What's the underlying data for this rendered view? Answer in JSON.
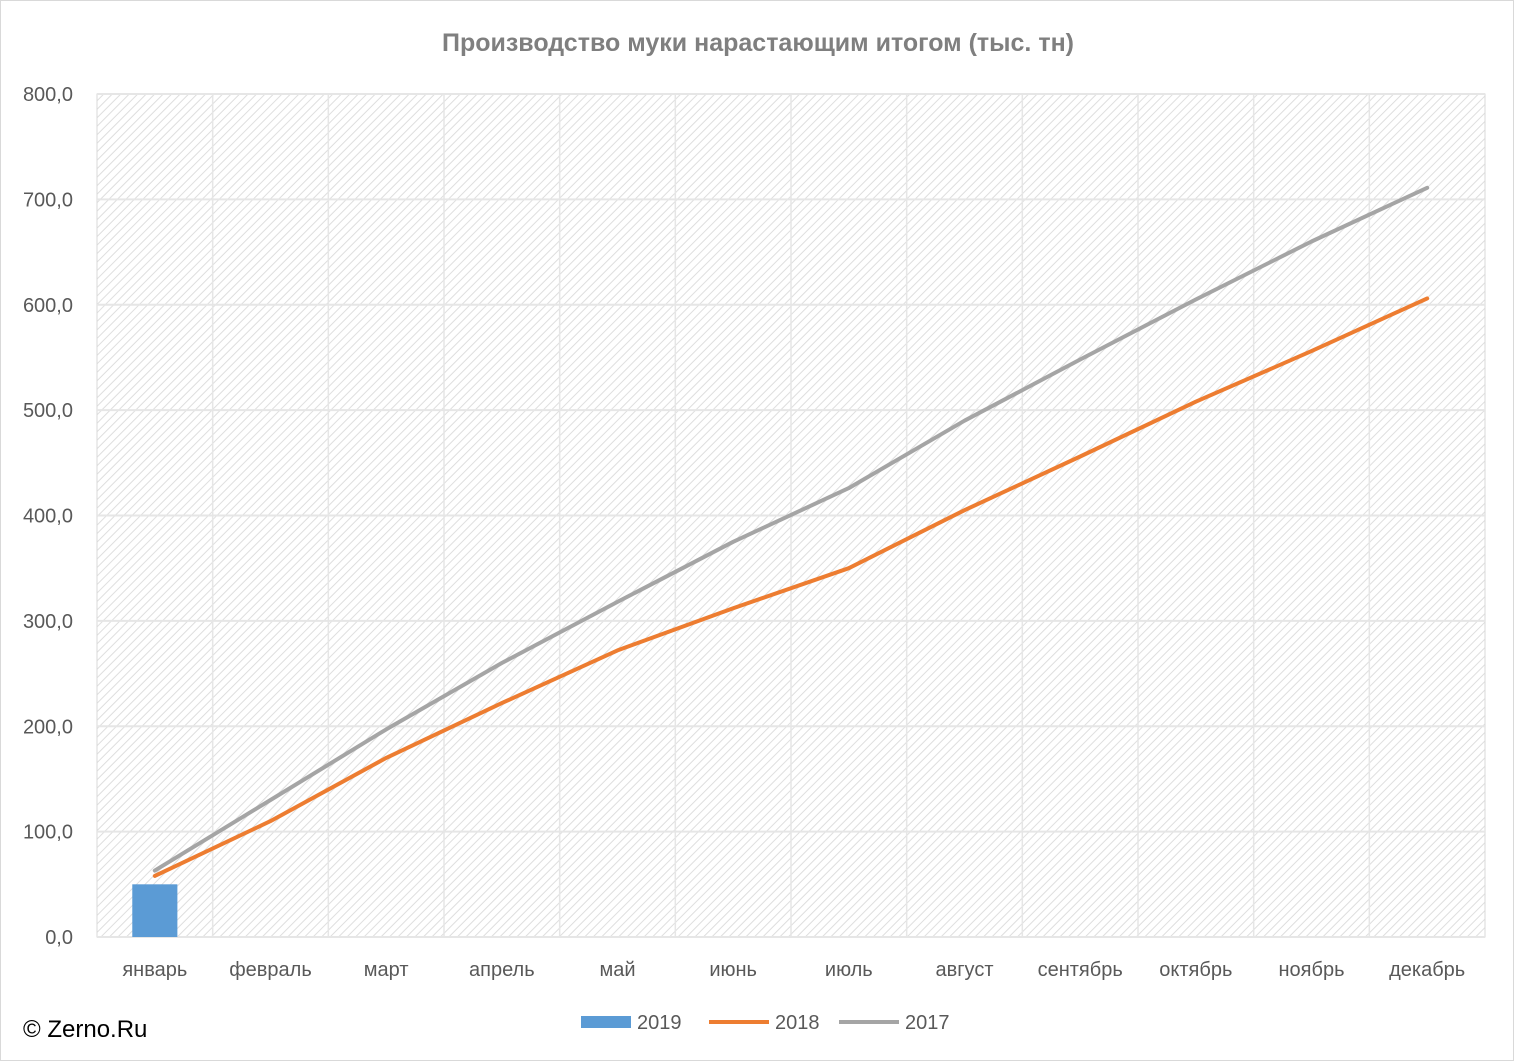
{
  "chart_data": {
    "type": "bar",
    "title": "Производство муки нарастающим итогом (тыс. тн)",
    "categories": [
      "январь",
      "февраль",
      "март",
      "апрель",
      "май",
      "июнь",
      "июль",
      "август",
      "сентябрь",
      "октябрь",
      "ноябрь",
      "декабрь"
    ],
    "ylim": [
      0,
      800
    ],
    "yticks": [
      "0,0",
      "100,0",
      "200,0",
      "300,0",
      "400,0",
      "500,0",
      "600,0",
      "700,0",
      "800,0"
    ],
    "grid": true,
    "legend_position": "bottom",
    "series": [
      {
        "name": "2019",
        "type": "bar",
        "color": "#5b9bd5",
        "values": [
          50,
          null,
          null,
          null,
          null,
          null,
          null,
          null,
          null,
          null,
          null,
          null
        ]
      },
      {
        "name": "2018",
        "type": "line",
        "color": "#ed7d31",
        "values": [
          58,
          110,
          170,
          222,
          272,
          312,
          350,
          405,
          456,
          508,
          556,
          606
        ]
      },
      {
        "name": "2017",
        "type": "line",
        "color": "#a5a5a5",
        "values": [
          63,
          130,
          197,
          260,
          318,
          375,
          426,
          490,
          548,
          605,
          660,
          711
        ]
      }
    ]
  },
  "watermark": "© Zerno.Ru"
}
